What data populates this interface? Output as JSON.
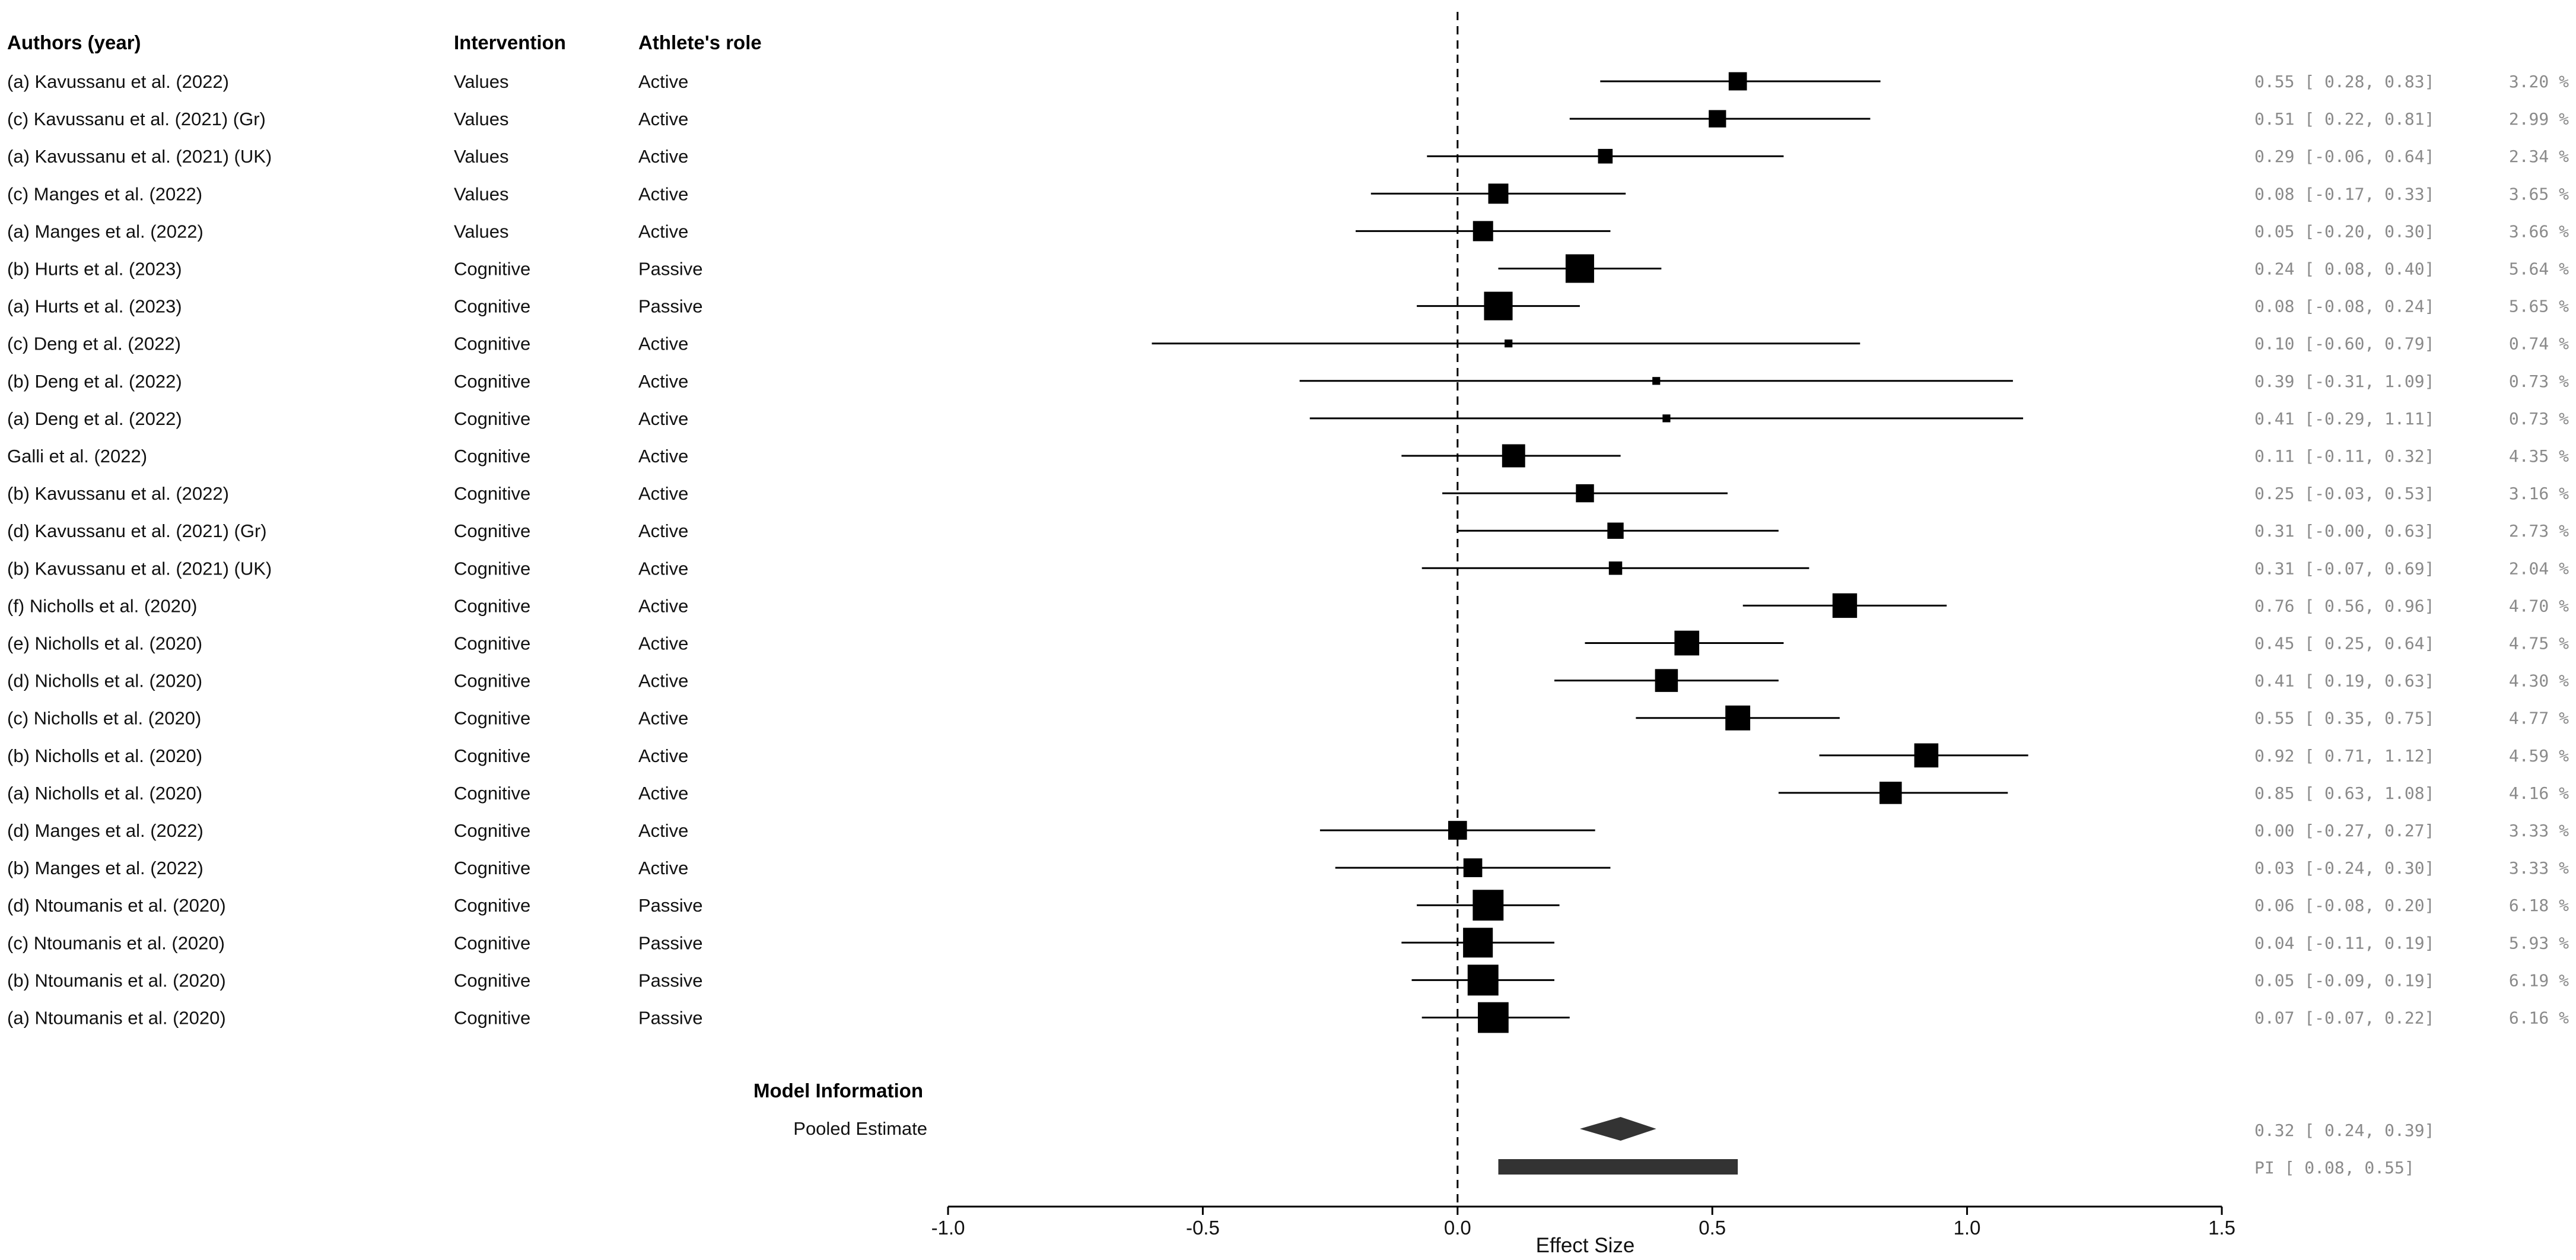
{
  "chart_data": {
    "type": "forest",
    "headers": {
      "authors": "Authors (year)",
      "intervention": "Intervention",
      "role": "Athlete's role"
    },
    "xlabel": "Effect Size",
    "xlim": [
      -1.0,
      1.5
    ],
    "ticks": [
      -1.0,
      -0.5,
      0.0,
      0.5,
      1.0,
      1.5
    ],
    "tick_labels": [
      "-1.0",
      "-0.5",
      "0.0",
      "0.5",
      "1.0",
      "1.5"
    ],
    "reference_line": 0.0,
    "colors": {
      "marker": "#000000",
      "summary": "#333333",
      "stats": "#8a8a8a"
    },
    "studies": [
      {
        "author": "(a) Kavussanu et al. (2022)",
        "intervention": "Values",
        "role": "Active",
        "es": 0.55,
        "lo": 0.28,
        "hi": 0.83,
        "ci_text": "0.55 [ 0.28, 0.83]",
        "weight": 3.2,
        "weight_text": "3.20 %"
      },
      {
        "author": "(c) Kavussanu et al. (2021) (Gr)",
        "intervention": "Values",
        "role": "Active",
        "es": 0.51,
        "lo": 0.22,
        "hi": 0.81,
        "ci_text": "0.51 [ 0.22, 0.81]",
        "weight": 2.99,
        "weight_text": "2.99 %"
      },
      {
        "author": "(a) Kavussanu et al. (2021) (UK)",
        "intervention": "Values",
        "role": "Active",
        "es": 0.29,
        "lo": -0.06,
        "hi": 0.64,
        "ci_text": "0.29 [-0.06, 0.64]",
        "weight": 2.34,
        "weight_text": "2.34 %"
      },
      {
        "author": "(c) Manges et al. (2022)",
        "intervention": "Values",
        "role": "Active",
        "es": 0.08,
        "lo": -0.17,
        "hi": 0.33,
        "ci_text": "0.08 [-0.17, 0.33]",
        "weight": 3.65,
        "weight_text": "3.65 %"
      },
      {
        "author": "(a) Manges et al. (2022)",
        "intervention": "Values",
        "role": "Active",
        "es": 0.05,
        "lo": -0.2,
        "hi": 0.3,
        "ci_text": "0.05 [-0.20, 0.30]",
        "weight": 3.66,
        "weight_text": "3.66 %"
      },
      {
        "author": "(b) Hurts et al. (2023)",
        "intervention": "Cognitive",
        "role": "Passive",
        "es": 0.24,
        "lo": 0.08,
        "hi": 0.4,
        "ci_text": "0.24 [ 0.08, 0.40]",
        "weight": 5.64,
        "weight_text": "5.64 %"
      },
      {
        "author": "(a) Hurts et al. (2023)",
        "intervention": "Cognitive",
        "role": "Passive",
        "es": 0.08,
        "lo": -0.08,
        "hi": 0.24,
        "ci_text": "0.08 [-0.08, 0.24]",
        "weight": 5.65,
        "weight_text": "5.65 %"
      },
      {
        "author": "(c) Deng et al. (2022)",
        "intervention": "Cognitive",
        "role": "Active",
        "es": 0.1,
        "lo": -0.6,
        "hi": 0.79,
        "ci_text": "0.10 [-0.60, 0.79]",
        "weight": 0.74,
        "weight_text": "0.74 %"
      },
      {
        "author": "(b) Deng et al. (2022)",
        "intervention": "Cognitive",
        "role": "Active",
        "es": 0.39,
        "lo": -0.31,
        "hi": 1.09,
        "ci_text": "0.39 [-0.31, 1.09]",
        "weight": 0.73,
        "weight_text": "0.73 %"
      },
      {
        "author": "(a) Deng et al. (2022)",
        "intervention": "Cognitive",
        "role": "Active",
        "es": 0.41,
        "lo": -0.29,
        "hi": 1.11,
        "ci_text": "0.41 [-0.29, 1.11]",
        "weight": 0.73,
        "weight_text": "0.73 %"
      },
      {
        "author": "Galli et al. (2022)",
        "intervention": "Cognitive",
        "role": "Active",
        "es": 0.11,
        "lo": -0.11,
        "hi": 0.32,
        "ci_text": "0.11 [-0.11, 0.32]",
        "weight": 4.35,
        "weight_text": "4.35 %"
      },
      {
        "author": "(b) Kavussanu et al. (2022)",
        "intervention": "Cognitive",
        "role": "Active",
        "es": 0.25,
        "lo": -0.03,
        "hi": 0.53,
        "ci_text": "0.25 [-0.03, 0.53]",
        "weight": 3.16,
        "weight_text": "3.16 %"
      },
      {
        "author": "(d) Kavussanu et al. (2021) (Gr)",
        "intervention": "Cognitive",
        "role": "Active",
        "es": 0.31,
        "lo": -0.0,
        "hi": 0.63,
        "ci_text": "0.31 [-0.00, 0.63]",
        "weight": 2.73,
        "weight_text": "2.73 %"
      },
      {
        "author": "(b) Kavussanu et al. (2021) (UK)",
        "intervention": "Cognitive",
        "role": "Active",
        "es": 0.31,
        "lo": -0.07,
        "hi": 0.69,
        "ci_text": "0.31 [-0.07, 0.69]",
        "weight": 2.04,
        "weight_text": "2.04 %"
      },
      {
        "author": "(f) Nicholls et al. (2020)",
        "intervention": "Cognitive",
        "role": "Active",
        "es": 0.76,
        "lo": 0.56,
        "hi": 0.96,
        "ci_text": "0.76 [ 0.56, 0.96]",
        "weight": 4.7,
        "weight_text": "4.70 %"
      },
      {
        "author": "(e) Nicholls et al. (2020)",
        "intervention": "Cognitive",
        "role": "Active",
        "es": 0.45,
        "lo": 0.25,
        "hi": 0.64,
        "ci_text": "0.45 [ 0.25, 0.64]",
        "weight": 4.75,
        "weight_text": "4.75 %"
      },
      {
        "author": "(d) Nicholls et al. (2020)",
        "intervention": "Cognitive",
        "role": "Active",
        "es": 0.41,
        "lo": 0.19,
        "hi": 0.63,
        "ci_text": "0.41 [ 0.19, 0.63]",
        "weight": 4.3,
        "weight_text": "4.30 %"
      },
      {
        "author": "(c) Nicholls et al. (2020)",
        "intervention": "Cognitive",
        "role": "Active",
        "es": 0.55,
        "lo": 0.35,
        "hi": 0.75,
        "ci_text": "0.55 [ 0.35, 0.75]",
        "weight": 4.77,
        "weight_text": "4.77 %"
      },
      {
        "author": "(b) Nicholls et al. (2020)",
        "intervention": "Cognitive",
        "role": "Active",
        "es": 0.92,
        "lo": 0.71,
        "hi": 1.12,
        "ci_text": "0.92 [ 0.71, 1.12]",
        "weight": 4.59,
        "weight_text": "4.59 %"
      },
      {
        "author": "(a) Nicholls et al. (2020)",
        "intervention": "Cognitive",
        "role": "Active",
        "es": 0.85,
        "lo": 0.63,
        "hi": 1.08,
        "ci_text": "0.85 [ 0.63, 1.08]",
        "weight": 4.16,
        "weight_text": "4.16 %"
      },
      {
        "author": "(d) Manges et al. (2022)",
        "intervention": "Cognitive",
        "role": "Active",
        "es": 0.0,
        "lo": -0.27,
        "hi": 0.27,
        "ci_text": "0.00 [-0.27, 0.27]",
        "weight": 3.33,
        "weight_text": "3.33 %"
      },
      {
        "author": "(b) Manges et al. (2022)",
        "intervention": "Cognitive",
        "role": "Active",
        "es": 0.03,
        "lo": -0.24,
        "hi": 0.3,
        "ci_text": "0.03 [-0.24, 0.30]",
        "weight": 3.33,
        "weight_text": "3.33 %"
      },
      {
        "author": "(d) Ntoumanis et al. (2020)",
        "intervention": "Cognitive",
        "role": "Passive",
        "es": 0.06,
        "lo": -0.08,
        "hi": 0.2,
        "ci_text": "0.06 [-0.08, 0.20]",
        "weight": 6.18,
        "weight_text": "6.18 %"
      },
      {
        "author": "(c) Ntoumanis et al. (2020)",
        "intervention": "Cognitive",
        "role": "Passive",
        "es": 0.04,
        "lo": -0.11,
        "hi": 0.19,
        "ci_text": "0.04 [-0.11, 0.19]",
        "weight": 5.93,
        "weight_text": "5.93 %"
      },
      {
        "author": "(b) Ntoumanis et al. (2020)",
        "intervention": "Cognitive",
        "role": "Passive",
        "es": 0.05,
        "lo": -0.09,
        "hi": 0.19,
        "ci_text": "0.05 [-0.09, 0.19]",
        "weight": 6.19,
        "weight_text": "6.19 %"
      },
      {
        "author": "(a) Ntoumanis et al. (2020)",
        "intervention": "Cognitive",
        "role": "Passive",
        "es": 0.07,
        "lo": -0.07,
        "hi": 0.22,
        "ci_text": "0.07 [-0.07, 0.22]",
        "weight": 6.16,
        "weight_text": "6.16 %"
      }
    ],
    "model_info_label": "Model Information",
    "pooled": {
      "label": "Pooled Estimate",
      "es": 0.32,
      "lo": 0.24,
      "hi": 0.39,
      "ci_text": "0.32 [ 0.24, 0.39]"
    },
    "prediction_interval": {
      "lo": 0.08,
      "hi": 0.55,
      "text": "PI [ 0.08, 0.55]"
    }
  }
}
